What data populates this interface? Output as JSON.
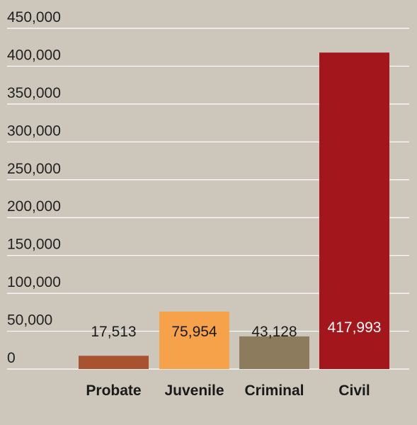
{
  "chart_data": {
    "type": "bar",
    "categories": [
      "Probate",
      "Juvenile",
      "Criminal",
      "Civil"
    ],
    "values": [
      17513,
      75954,
      43128,
      417993
    ],
    "data_labels": [
      "17,513",
      "75,954",
      "43,128",
      "417,993"
    ],
    "ylim": [
      0,
      450000
    ],
    "yticks": [
      0,
      50000,
      100000,
      150000,
      200000,
      250000,
      300000,
      350000,
      400000,
      450000
    ],
    "ytick_labels": [
      "0",
      "50,000",
      "100,000",
      "150,000",
      "200,000",
      "250,000",
      "300,000",
      "350,000",
      "400,000",
      "450,000"
    ],
    "colors": [
      "#a9522f",
      "#f6a24a",
      "#8c7b5c",
      "#a3171c"
    ],
    "label_colors": [
      "#1a1a1a",
      "#1a1a1a",
      "#1a1a1a",
      "#ffffff"
    ],
    "grid": true,
    "title": "",
    "xlabel": "",
    "ylabel": ""
  }
}
